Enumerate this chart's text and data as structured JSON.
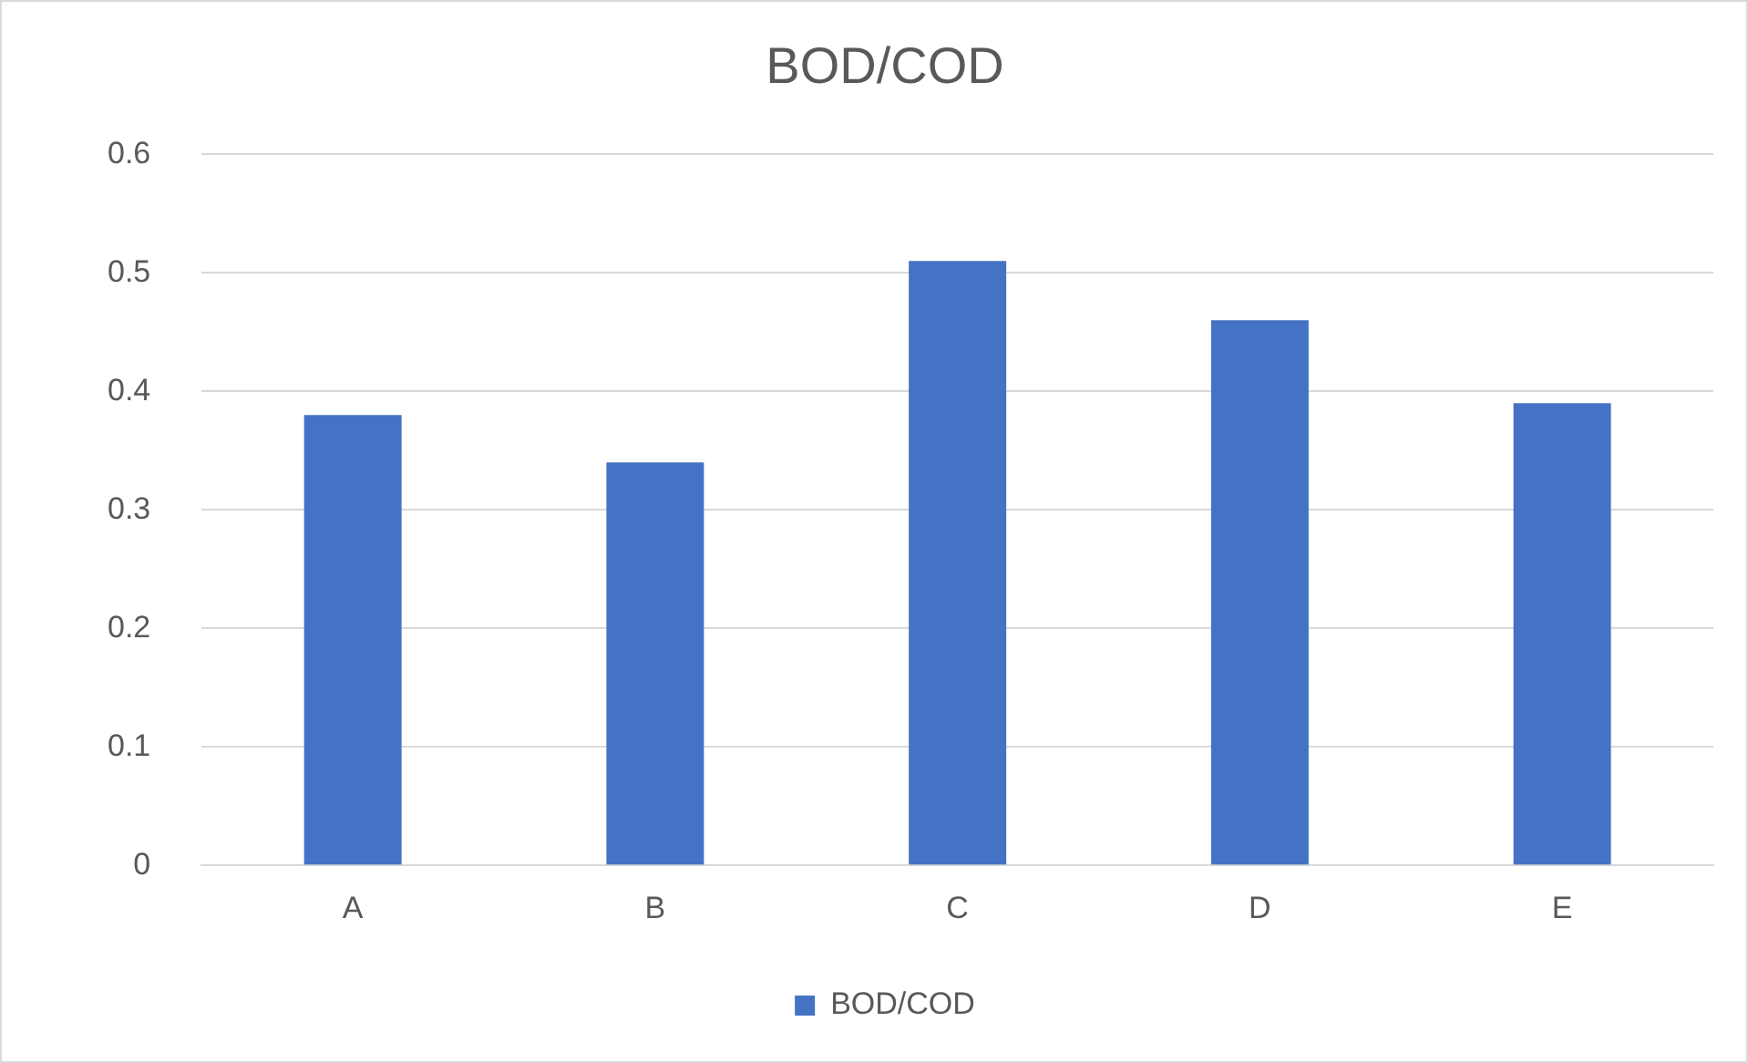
{
  "chart_data": {
    "type": "bar",
    "title": "BOD/COD",
    "categories": [
      "A",
      "B",
      "C",
      "D",
      "E"
    ],
    "series": [
      {
        "name": "BOD/COD",
        "color": "#4472c4",
        "values": [
          0.38,
          0.34,
          0.51,
          0.46,
          0.39
        ]
      }
    ],
    "ylim": [
      0,
      0.6
    ],
    "yticks": [
      0,
      0.1,
      0.2,
      0.3,
      0.4,
      0.5,
      0.6
    ],
    "grid": "y",
    "legend": "bottom"
  }
}
